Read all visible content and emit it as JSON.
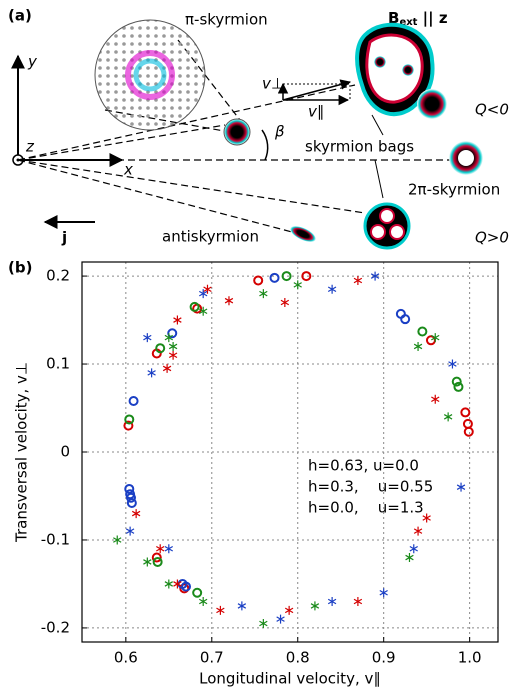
{
  "panel_a": {
    "label": "(a)",
    "zoom_label": "π-skyrmion",
    "field": "B",
    "field_sub": "ext",
    "field_rest": " || z",
    "axis_y": "y",
    "axis_z": "z",
    "axis_x": "x",
    "current": "j",
    "v_perp": "v⊥",
    "v_par": "v∥",
    "angle": "β",
    "bags": "skyrmion bags",
    "two_pi": "2π-skyrmion",
    "anti": "antiskyrmion",
    "q_neg": "Q<0",
    "q_pos": "Q>0"
  },
  "chart_data": {
    "type": "scatter",
    "panel_label": "(b)",
    "x_label": "Longitudinal velocity, v∥",
    "y_label": "Transversal velocity, v⊥",
    "xlim": [
      0.549,
      1.033
    ],
    "ylim": [
      -0.216,
      0.216
    ],
    "xticks": [
      0.6,
      0.7,
      0.8,
      0.9,
      {
        "value": 1,
        "label": "1.0"
      }
    ],
    "yticks": [
      -0.2,
      -0.1,
      0,
      0.1,
      0.2
    ],
    "grid": true,
    "series": [
      {
        "name": "h=0.63, u=0.0",
        "color": "#d40000",
        "marker": "circle",
        "x": [
          0.603,
          0.636,
          0.683,
          0.754,
          0.81,
          0.955,
          0.995,
          0.998,
          0.999,
          0.636,
          0.668
        ],
        "y": [
          0.03,
          0.112,
          0.163,
          0.195,
          0.2,
          0.127,
          0.045,
          0.032,
          0.023,
          -0.12,
          -0.155
        ]
      },
      {
        "name": "h=0.3,    u=0.55",
        "color": "#1a8a1a",
        "marker": "circle",
        "x": [
          0.604,
          0.64,
          0.68,
          0.787,
          0.945,
          0.985,
          0.987,
          0.637,
          0.683
        ],
        "y": [
          0.037,
          0.118,
          0.165,
          0.2,
          0.137,
          0.08,
          0.074,
          -0.125,
          -0.16
        ]
      },
      {
        "name": "h=0.0,    u=1.3",
        "color": "#1a3fc4",
        "marker": "circle",
        "x": [
          0.609,
          0.604,
          0.605,
          0.606,
          0.607,
          0.666,
          0.67,
          0.773,
          0.92,
          0.925,
          0.654
        ],
        "y": [
          0.058,
          -0.042,
          -0.048,
          -0.052,
          -0.058,
          -0.15,
          -0.153,
          0.198,
          0.157,
          0.151,
          0.135
        ]
      },
      {
        "color": "#d40000",
        "marker": "star",
        "x": [
          0.695,
          0.72,
          0.655,
          0.648,
          0.785,
          0.87,
          0.96,
          0.94,
          0.95,
          0.87,
          0.79,
          0.71,
          0.66,
          0.64,
          0.612,
          0.66
        ],
        "y": [
          0.185,
          0.172,
          0.11,
          0.095,
          0.17,
          0.195,
          0.06,
          -0.09,
          -0.075,
          -0.17,
          -0.18,
          -0.18,
          -0.15,
          -0.11,
          -0.07,
          0.15
        ]
      },
      {
        "color": "#1a8a1a",
        "marker": "star",
        "x": [
          0.8,
          0.76,
          0.69,
          0.65,
          0.94,
          0.96,
          0.975,
          0.93,
          0.82,
          0.76,
          0.69,
          0.65,
          0.625,
          0.59,
          0.655
        ],
        "y": [
          0.19,
          0.18,
          0.16,
          0.13,
          0.12,
          0.13,
          0.04,
          -0.12,
          -0.175,
          -0.195,
          -0.17,
          -0.15,
          -0.125,
          -0.1,
          0.12
        ]
      },
      {
        "color": "#1a3fc4",
        "marker": "star",
        "x": [
          0.63,
          0.69,
          0.84,
          0.89,
          0.98,
          0.99,
          0.935,
          0.9,
          0.84,
          0.78,
          0.735,
          0.65,
          0.605,
          0.625
        ],
        "y": [
          0.09,
          0.18,
          0.185,
          0.2,
          0.1,
          -0.04,
          -0.11,
          -0.16,
          -0.17,
          -0.19,
          -0.175,
          -0.11,
          -0.09,
          0.13
        ]
      }
    ]
  }
}
